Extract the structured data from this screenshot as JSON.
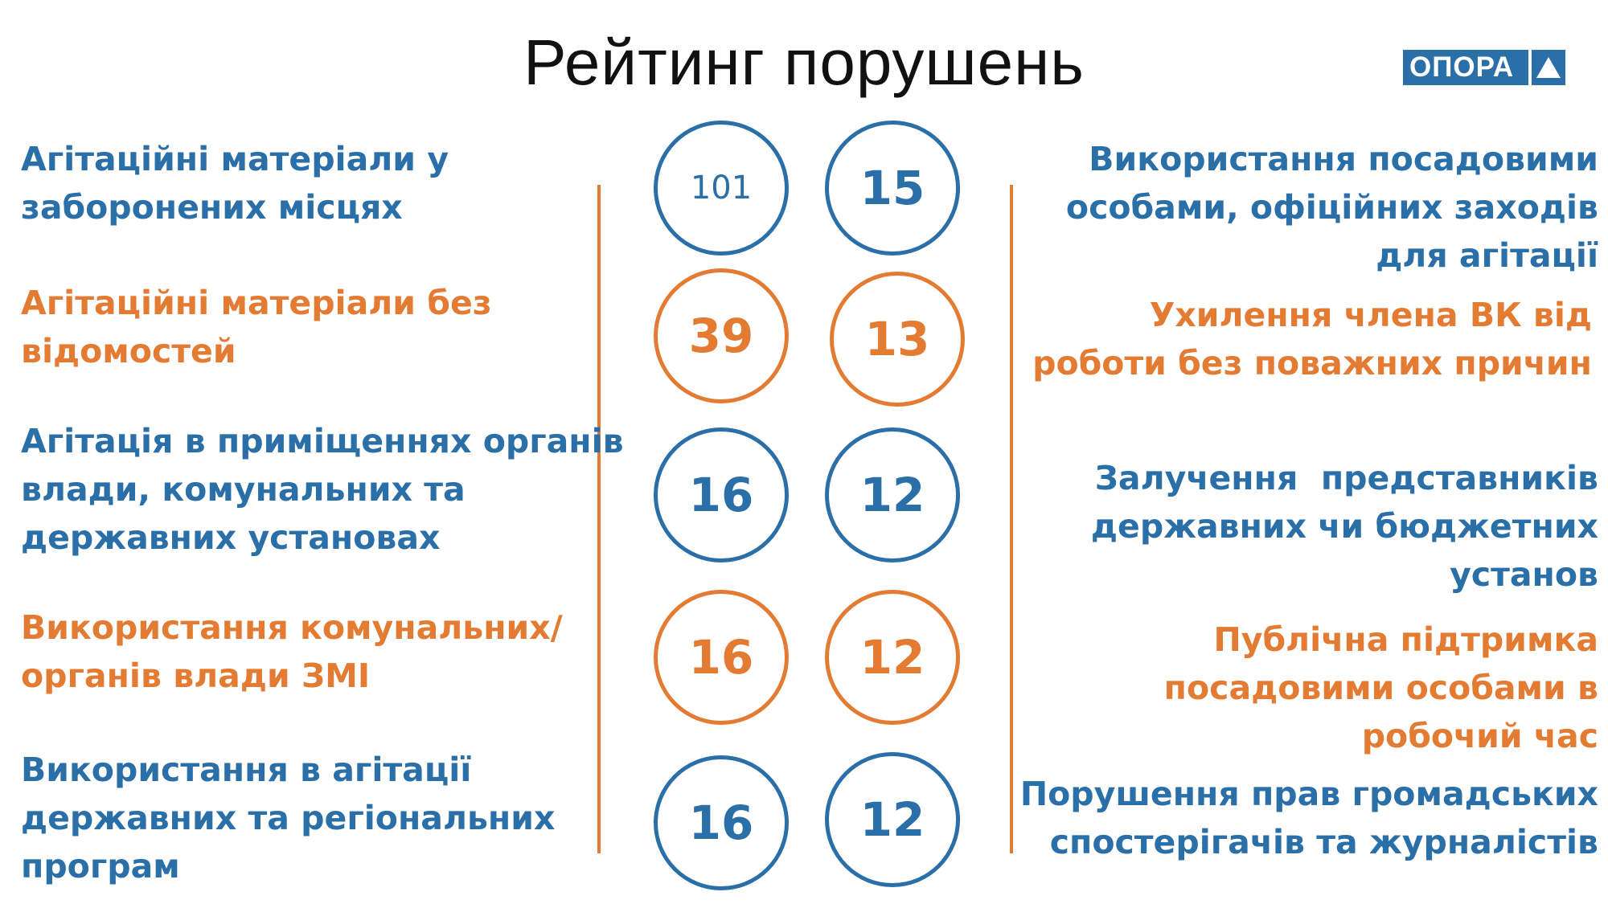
{
  "title": "Рейтинг порушень",
  "logo": {
    "text": "ОПОРА",
    "icon": "triangle-icon"
  },
  "colors": {
    "blue": "#2a6fa8",
    "orange": "#e47b33"
  },
  "left_items": [
    {
      "label": "Агітаційні матеріали у\nзаборонених місцях",
      "count": "101",
      "color": "blue"
    },
    {
      "label": "Агітаційні матеріали без\nвідомостей",
      "count": "39",
      "color": "orange"
    },
    {
      "label": "Агітація в приміщеннях органів\nвлади, комунальних та\nдержавних установах",
      "count": "16",
      "color": "blue"
    },
    {
      "label": "Використання комунальних/\nорганів влади ЗМІ",
      "count": "16",
      "color": "orange"
    },
    {
      "label": "Використання в агітації\nдержавних та регіональних\nпрограм",
      "count": "16",
      "color": "blue"
    }
  ],
  "right_items": [
    {
      "label": "Використання посадовими\nособами, офіційних заходів\nдля агітації",
      "count": "15",
      "color": "blue"
    },
    {
      "label": "Ухилення члена ВК від\nроботи без поважних причин",
      "count": "13",
      "color": "orange"
    },
    {
      "label": "Залучення  представників\nдержавних чи бюджетних\nустанов",
      "count": "12",
      "color": "blue"
    },
    {
      "label": "Публічна підтримка\nпосадовими особами в\nробочий час",
      "count": "12",
      "color": "orange"
    },
    {
      "label": "Порушення прав громадських\nспостерігачів та журналістів",
      "count": "12",
      "color": "blue"
    }
  ]
}
